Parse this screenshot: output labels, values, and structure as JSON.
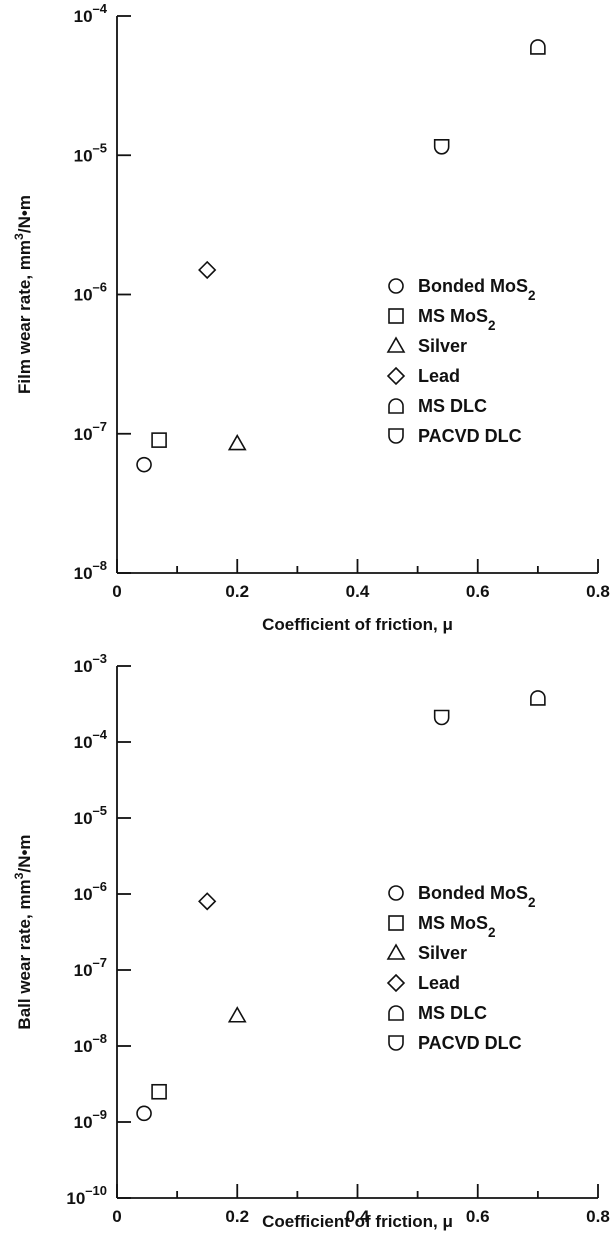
{
  "chart_data": [
    {
      "type": "scatter",
      "xlabel": "Coefficient of friction, μ",
      "ylabel": "Film wear rate, mm³/N•m",
      "xlim": [
        0,
        0.8
      ],
      "ylim_exp": [
        -8,
        -4
      ],
      "yscale": "log",
      "x_ticks": [
        "0",
        "0.2",
        "0.4",
        "0.6",
        "0.8"
      ],
      "y_ticks": [
        {
          "base": "10",
          "exp": "–8"
        },
        {
          "base": "10",
          "exp": "–7"
        },
        {
          "base": "10",
          "exp": "–6"
        },
        {
          "base": "10",
          "exp": "–5"
        },
        {
          "base": "10",
          "exp": "–4"
        }
      ],
      "legend_position": "right-middle",
      "series": [
        {
          "name": "Bonded MoS₂",
          "marker": "circle",
          "x": 0.045,
          "y": 6e-08
        },
        {
          "name": "MS MoS₂",
          "marker": "square",
          "x": 0.07,
          "y": 9e-08
        },
        {
          "name": "Silver",
          "marker": "triangle",
          "x": 0.2,
          "y": 8.5e-08
        },
        {
          "name": "Lead",
          "marker": "diamond",
          "x": 0.15,
          "y": 1.5e-06
        },
        {
          "name": "MS DLC",
          "marker": "dome",
          "x": 0.7,
          "y": 6e-05
        },
        {
          "name": "PACVD DLC",
          "marker": "cup",
          "x": 0.54,
          "y": 1.15e-05
        }
      ]
    },
    {
      "type": "scatter",
      "xlabel": "Coefficient of friction, μ",
      "ylabel": "Ball wear rate, mm³/N•m",
      "xlim": [
        0,
        0.8
      ],
      "ylim_exp": [
        -10,
        -3
      ],
      "yscale": "log",
      "x_ticks": [
        "0",
        "0.2",
        "0.4",
        "0.6",
        "0.8"
      ],
      "y_ticks": [
        {
          "base": "10",
          "exp": "–10"
        },
        {
          "base": "10",
          "exp": "–9"
        },
        {
          "base": "10",
          "exp": "–8"
        },
        {
          "base": "10",
          "exp": "–7"
        },
        {
          "base": "10",
          "exp": "–6"
        },
        {
          "base": "10",
          "exp": "–5"
        },
        {
          "base": "10",
          "exp": "–4"
        },
        {
          "base": "10",
          "exp": "–3"
        }
      ],
      "legend_position": "right-middle",
      "series": [
        {
          "name": "Bonded MoS₂",
          "marker": "circle",
          "x": 0.045,
          "y": 1.3e-09
        },
        {
          "name": "MS MoS₂",
          "marker": "square",
          "x": 0.07,
          "y": 2.5e-09
        },
        {
          "name": "Silver",
          "marker": "triangle",
          "x": 0.2,
          "y": 2.5e-08
        },
        {
          "name": "Lead",
          "marker": "diamond",
          "x": 0.15,
          "y": 8e-07
        },
        {
          "name": "MS DLC",
          "marker": "dome",
          "x": 0.7,
          "y": 0.00038
        },
        {
          "name": "PACVD DLC",
          "marker": "cup",
          "x": 0.54,
          "y": 0.00021
        }
      ]
    }
  ]
}
